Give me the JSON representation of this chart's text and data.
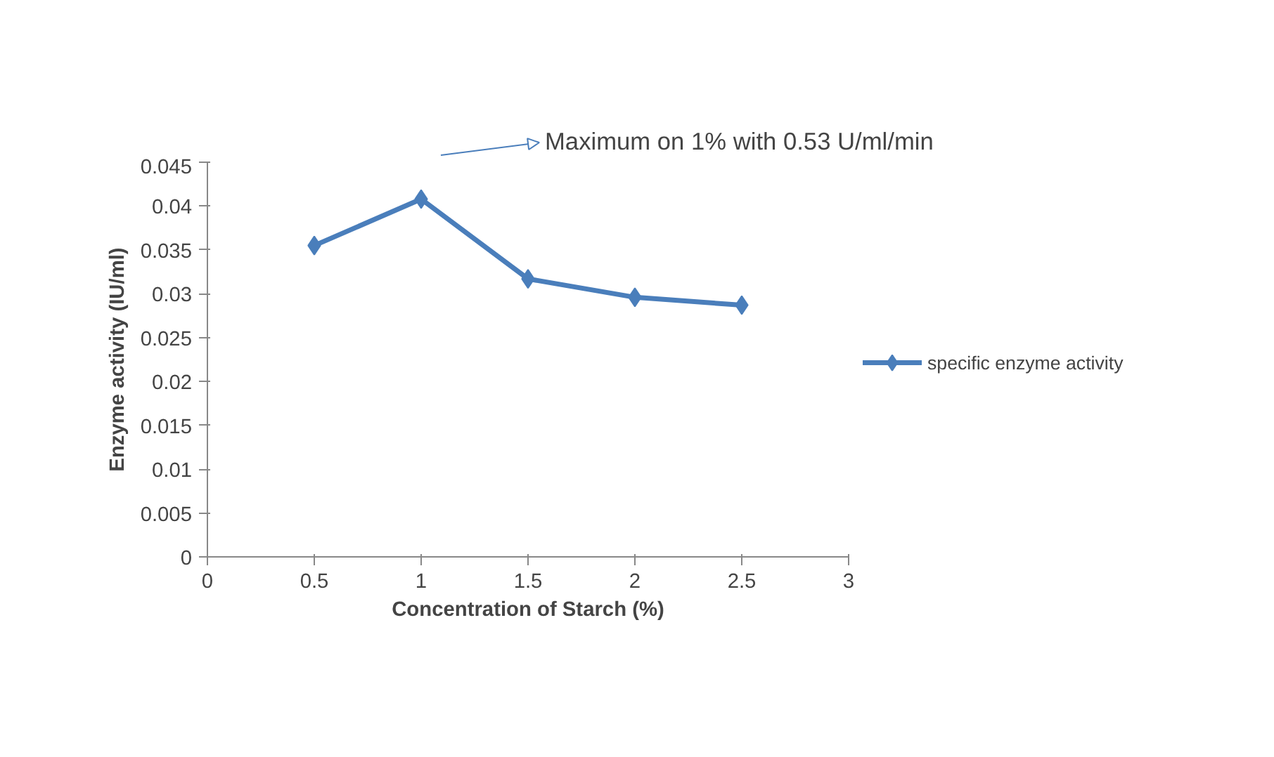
{
  "chart_data": {
    "type": "line",
    "xlabel": "Concentration of Starch (%)",
    "ylabel": "Enzyme activity (IU/ml)",
    "x": [
      0.5,
      1,
      1.5,
      2,
      2.5
    ],
    "series": [
      {
        "name": "specific enzyme activity",
        "color": "#4a7ebb",
        "values": [
          0.0355,
          0.0408,
          0.0317,
          0.0296,
          0.0287
        ]
      }
    ],
    "xlim": [
      0,
      3
    ],
    "xticks": [
      0,
      0.5,
      1,
      1.5,
      2,
      2.5,
      3
    ],
    "ylim": [
      0,
      0.045
    ],
    "yticks": [
      0,
      0.005,
      0.01,
      0.015,
      0.02,
      0.025,
      0.03,
      0.035,
      0.04,
      0.045
    ],
    "annotations": [
      "Maximum on 1%  with 0.53 U/ml/min"
    ],
    "marker": "diamond",
    "line_style": "solid",
    "legend": "right",
    "grid": false
  }
}
